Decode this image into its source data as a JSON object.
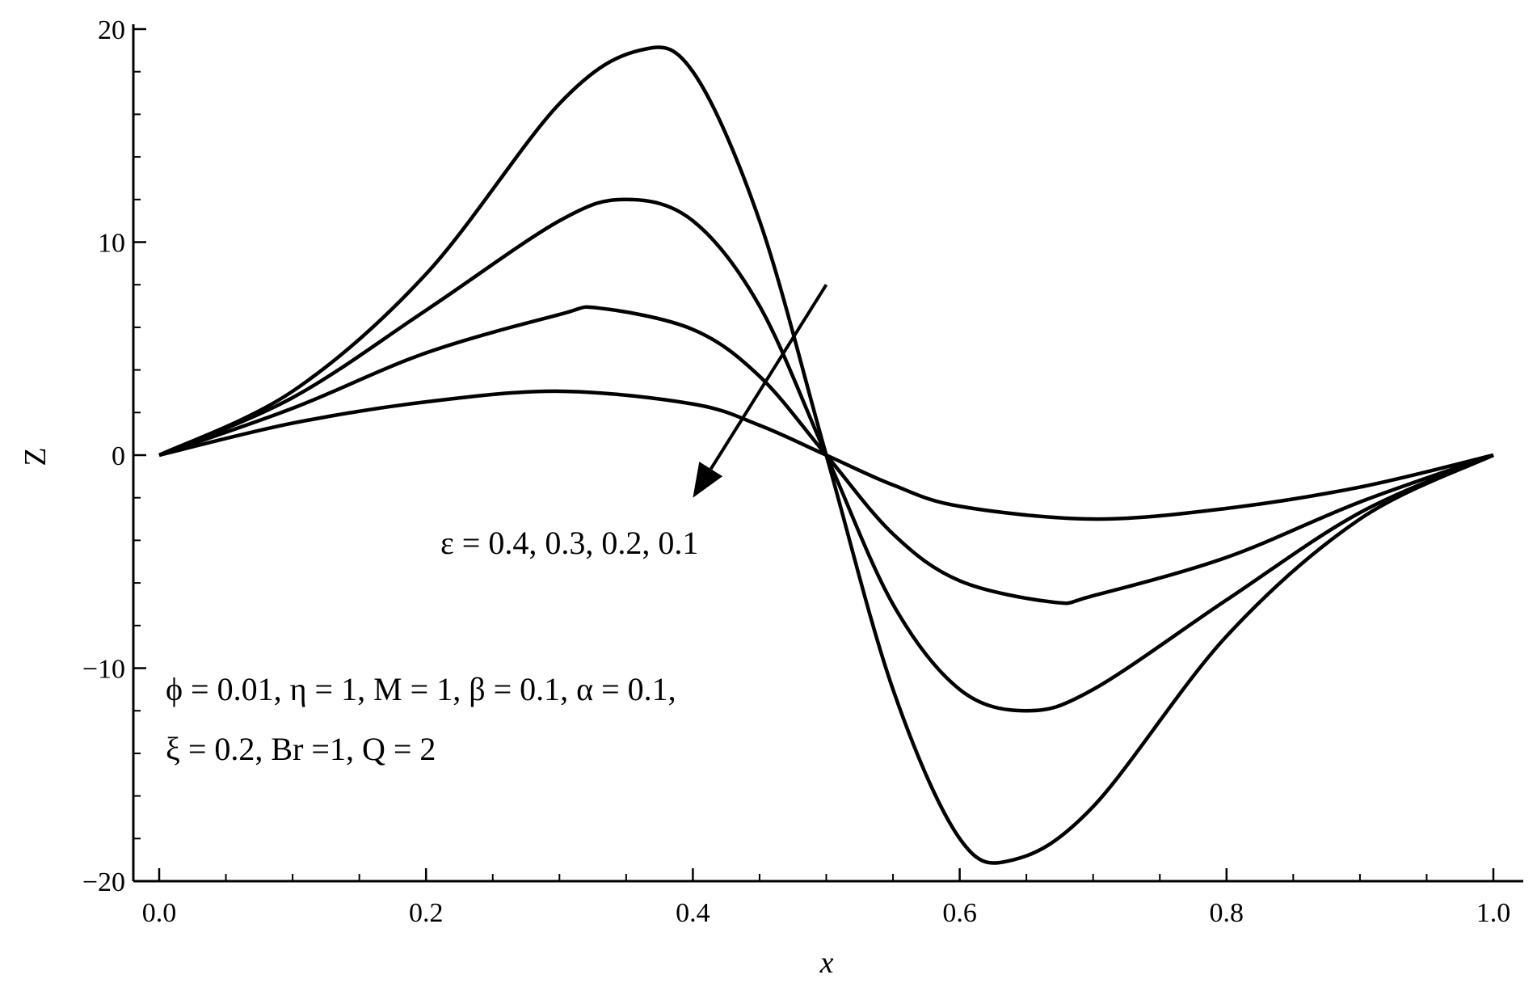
{
  "chart_data": {
    "type": "line",
    "title": "",
    "xlabel": "x",
    "ylabel": "Z",
    "xlim": [
      0.0,
      1.0
    ],
    "ylim": [
      -20,
      20
    ],
    "x_ticks": [
      "0.0",
      "0.2",
      "0.4",
      "0.6",
      "0.8",
      "1.0"
    ],
    "y_ticks": [
      "20",
      "10",
      "0",
      "−10",
      "−20"
    ],
    "grid": false,
    "legend": "none",
    "line_color": "#000000",
    "series": [
      {
        "x": [
          0,
          0.1,
          0.2,
          0.3,
          0.36,
          0.4,
          0.45,
          0.5,
          0.55,
          0.6,
          0.64,
          0.7,
          0.8,
          0.9,
          1.0
        ],
        "values": [
          0,
          3.0,
          8.5,
          16.5,
          19.0,
          18.0,
          11.0,
          0,
          -11.0,
          -18.0,
          -19.0,
          -16.5,
          -8.5,
          -3.0,
          0
        ]
      },
      {
        "x": [
          0,
          0.1,
          0.2,
          0.3,
          0.35,
          0.4,
          0.45,
          0.5,
          0.55,
          0.6,
          0.65,
          0.7,
          0.8,
          0.9,
          1.0
        ],
        "values": [
          0,
          2.7,
          6.8,
          11.0,
          12.0,
          11.0,
          7.0,
          0,
          -7.0,
          -11.0,
          -12.0,
          -11.0,
          -6.8,
          -2.7,
          0
        ]
      },
      {
        "x": [
          0,
          0.1,
          0.2,
          0.3,
          0.33,
          0.4,
          0.45,
          0.5,
          0.55,
          0.6,
          0.67,
          0.7,
          0.8,
          0.9,
          1.0
        ],
        "values": [
          0,
          2.2,
          4.8,
          6.6,
          6.9,
          5.9,
          3.7,
          0,
          -3.7,
          -5.9,
          -6.9,
          -6.6,
          -4.8,
          -2.2,
          0
        ]
      },
      {
        "x": [
          0,
          0.1,
          0.2,
          0.3,
          0.4,
          0.45,
          0.5,
          0.55,
          0.6,
          0.7,
          0.8,
          0.9,
          1.0
        ],
        "values": [
          0,
          1.5,
          2.5,
          3.0,
          2.4,
          1.4,
          0,
          -1.4,
          -2.4,
          -3.0,
          -2.5,
          -1.5,
          0
        ]
      }
    ],
    "annotations": {
      "epsilon": "ε = 0.4, 0.3, 0.2, 0.1",
      "params_line1": "ϕ  = 0.01, η = 1, M = 1, β = 0.1, α = 0.1,",
      "params_line2": "ξ = 0.2, Br =1, Q = 2"
    },
    "arrow": {
      "from": [
        0.5,
        8
      ],
      "to": [
        0.4,
        -2
      ]
    }
  }
}
